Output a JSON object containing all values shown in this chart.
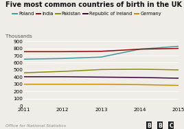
{
  "title": "Five most common countries of birth in the UK",
  "ylabel": "Thousands",
  "footer": "Office for National Statistics",
  "years": [
    2011,
    2012,
    2013,
    2014,
    2015
  ],
  "series": [
    {
      "name": "Poland",
      "color": "#3a9a9a",
      "values": [
        650,
        660,
        680,
        790,
        830
      ]
    },
    {
      "name": "India",
      "color": "#990000",
      "values": [
        755,
        755,
        760,
        790,
        800
      ]
    },
    {
      "name": "Pakistan",
      "color": "#8a8a00",
      "values": [
        460,
        480,
        505,
        510,
        500
      ]
    },
    {
      "name": "Republic of Ireland",
      "color": "#330033",
      "values": [
        405,
        405,
        400,
        395,
        385
      ]
    },
    {
      "name": "Germany",
      "color": "#cc8800",
      "values": [
        300,
        300,
        300,
        295,
        285
      ]
    }
  ],
  "ylim": [
    0,
    900
  ],
  "yticks": [
    0,
    100,
    200,
    300,
    400,
    500,
    600,
    700,
    800,
    900
  ],
  "background_color": "#f0ede8",
  "plot_bg_color": "#f0ede8",
  "title_fontsize": 7.0,
  "legend_fontsize": 4.8,
  "label_fontsize": 5.2,
  "tick_fontsize": 5.2,
  "footer_fontsize": 4.5,
  "linewidth": 1.1
}
